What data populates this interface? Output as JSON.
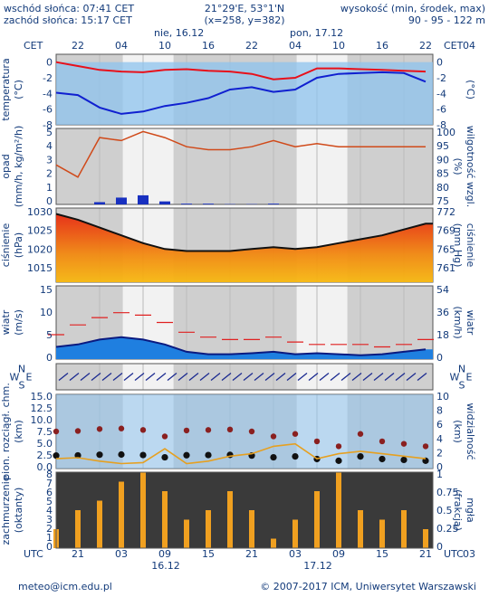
{
  "header": {
    "sunrise": "wschód słońca: 07:41 CET",
    "sunset": "zachód słońca: 15:17 CET",
    "coords": "21°29'E, 53°1'N",
    "grid": "(x=258, y=382)",
    "alt_label": "wysokość (min, środek, max)",
    "alt_values": "90 - 95 - 122 m"
  },
  "timeline": {
    "tz": "CET",
    "top_hours": [
      "22",
      "04",
      "10",
      "16",
      "22",
      "04",
      "10",
      "16",
      "22",
      "04"
    ],
    "dates_top": [
      "nie, 16.12",
      "pon, 17.12"
    ],
    "bottom_tz": "UTC",
    "bottom_hours": [
      "21",
      "03",
      "09",
      "15",
      "21",
      "03",
      "09",
      "15",
      "21",
      "03"
    ],
    "dates_bottom": [
      "16.12",
      "17.12"
    ]
  },
  "panels": {
    "temperature": {
      "left_label": "temperatura",
      "left_unit": "(°C)",
      "right_unit": "(°C)",
      "ticks": [
        "0",
        "-2",
        "-4",
        "-6",
        "-8"
      ]
    },
    "precip": {
      "left_label": "opad",
      "left_unit": "(mm/h, kg/m²/h)",
      "right_label": "wilgotność wzgl.",
      "right_unit": "(%)",
      "left_ticks": [
        "5",
        "4",
        "3",
        "2",
        "1",
        "0"
      ],
      "right_ticks": [
        "100",
        "95",
        "90",
        "85",
        "80",
        "75"
      ]
    },
    "pressure": {
      "left_label": "ciśnienie",
      "left_unit": "(hPa)",
      "right_label": "ciśnienie",
      "right_unit": "(mm Hg)",
      "left_ticks": [
        "1030",
        "1025",
        "1020",
        "1015"
      ],
      "right_ticks": [
        "772",
        "769",
        "765",
        "761"
      ]
    },
    "wind": {
      "left_label": "wiatr",
      "left_unit": "(m/s)",
      "right_label": "wiatr",
      "right_unit": "(km/h)",
      "left_ticks": [
        "15",
        "10",
        "5",
        "0"
      ],
      "right_ticks": [
        "54",
        "36",
        "18",
        "0"
      ]
    },
    "direction": {
      "n": "N",
      "s": "S",
      "w": "W",
      "e": "E"
    },
    "visibility": {
      "left_label": "pion. rozciągł. chm.",
      "left_unit": "(km)",
      "right_label": "widzialność",
      "right_unit": "(km)",
      "left_ticks": [
        "15.0",
        "12.5",
        "10.0",
        "7.5",
        "5.0",
        "2.5",
        "0.0"
      ],
      "right_ticks": [
        "10",
        "8",
        "6",
        "4",
        "2",
        "0"
      ]
    },
    "clouds": {
      "left_label": "zachmurzenie",
      "left_unit": "(oktanty)",
      "right_label": "mgła",
      "right_unit": "(frakcja)",
      "left_ticks": [
        "8",
        "7",
        "6",
        "5",
        "4",
        "3",
        "2",
        "1",
        "0"
      ],
      "right_ticks": [
        "1",
        "0.75",
        "0.5",
        "0.25",
        "0"
      ]
    }
  },
  "footer": {
    "email": "meteo@icm.edu.pl",
    "copyright": "© 2007-2017 ICM, Uniwersytet Warszawski"
  },
  "colors": {
    "temp_red": "#e8101a",
    "dew_blue": "#1020d0",
    "sky": "#8ec3ee",
    "night": "#d0d0d0",
    "rain": "#1830c0",
    "rh": "#d04a1a",
    "wind": "#1f7fe0",
    "gust": "#e02020",
    "cloud_bar": "#f0a020"
  },
  "chart_data": [
    {
      "type": "line",
      "title": "temperatura",
      "ylabel": "(°C)",
      "ylim": [
        -8,
        1
      ],
      "x_hours": [
        0,
        3,
        6,
        9,
        12,
        15,
        18,
        21,
        24,
        27,
        30,
        33,
        36,
        39,
        42,
        45,
        48,
        51
      ],
      "series": [
        {
          "name": "temperature",
          "values": [
            0.0,
            -0.5,
            -1.0,
            -1.2,
            -1.3,
            -1.0,
            -0.9,
            -1.1,
            -1.2,
            -1.5,
            -2.2,
            -2.0,
            -0.8,
            -0.8,
            -0.9,
            -1.0,
            -1.1,
            -1.2
          ]
        },
        {
          "name": "dew point",
          "values": [
            -3.9,
            -4.2,
            -5.8,
            -6.6,
            -6.3,
            -5.6,
            -5.2,
            -4.6,
            -3.5,
            -3.2,
            -3.8,
            -3.5,
            -2.0,
            -1.5,
            -1.4,
            -1.3,
            -1.4,
            -2.5
          ]
        }
      ]
    },
    {
      "type": "line",
      "title": "opad / wilgotność wzgl.",
      "x_hours": [
        0,
        3,
        6,
        9,
        12,
        15,
        18,
        21,
        24,
        27,
        30,
        33,
        36,
        39,
        42,
        45,
        48,
        51
      ],
      "series": [
        {
          "name": "precip",
          "values": [
            0.0,
            0.0,
            0.15,
            0.45,
            0.6,
            0.2,
            0.05,
            0.05,
            0.02,
            0.02,
            0.05,
            0.0,
            0.0,
            0.0,
            0.0,
            0.0,
            0.0,
            0.0
          ]
        },
        {
          "name": "rh",
          "values": [
            88,
            84,
            97,
            96,
            99,
            97,
            94,
            93,
            93,
            94,
            96,
            94,
            95,
            94,
            94,
            94,
            94,
            94
          ]
        }
      ],
      "ylim": [
        0,
        5
      ],
      "y2lim": [
        75,
        100
      ]
    },
    {
      "type": "area",
      "title": "ciśnienie",
      "ylabel": "(hPa)",
      "ylim": [
        1012,
        1031
      ],
      "x_hours": [
        0,
        3,
        6,
        9,
        12,
        15,
        18,
        21,
        24,
        27,
        30,
        33,
        36,
        39,
        42,
        45,
        48,
        51
      ],
      "values": [
        1029.5,
        1028.0,
        1026.0,
        1024.0,
        1022.0,
        1020.5,
        1020.0,
        1020.0,
        1020.0,
        1020.5,
        1021.0,
        1020.5,
        1021.0,
        1022.0,
        1023.0,
        1024.0,
        1025.5,
        1027.0
      ]
    },
    {
      "type": "line",
      "title": "wiatr",
      "ylabel": "(m/s)",
      "ylim": [
        0,
        15
      ],
      "x_hours": [
        0,
        3,
        6,
        9,
        12,
        15,
        18,
        21,
        24,
        27,
        30,
        33,
        36,
        39,
        42,
        45,
        48,
        51
      ],
      "series": [
        {
          "name": "wind",
          "values": [
            2.5,
            3.0,
            4.0,
            4.5,
            4.0,
            3.0,
            1.5,
            1.0,
            1.0,
            1.2,
            1.5,
            1.0,
            1.2,
            1.0,
            0.8,
            1.0,
            1.5,
            2.0
          ]
        },
        {
          "name": "gust",
          "values": [
            5.0,
            7.0,
            8.5,
            9.5,
            9.0,
            7.5,
            5.5,
            4.5,
            4.0,
            4.0,
            4.5,
            3.5,
            3.0,
            3.0,
            3.0,
            2.5,
            3.0,
            4.0
          ]
        }
      ]
    },
    {
      "type": "scatter",
      "title": "pion. rozciągł. chm. / widzialność",
      "ylabel": "(km)",
      "ylim": [
        0,
        15
      ],
      "x_hours": [
        0,
        3,
        6,
        9,
        12,
        15,
        18,
        21,
        24,
        27,
        30,
        33,
        36,
        39,
        42,
        45,
        48,
        51
      ],
      "series": [
        {
          "name": "cloud depth",
          "values": [
            7.5,
            7.6,
            8.0,
            8.1,
            7.8,
            6.5,
            7.7,
            7.8,
            7.9,
            7.5,
            6.5,
            7.0,
            5.5,
            4.5,
            7.0,
            5.5,
            5.0,
            4.5
          ]
        },
        {
          "name": "visibility",
          "values": [
            2.0,
            2.2,
            1.5,
            1.0,
            1.2,
            4.0,
            1.0,
            1.5,
            2.5,
            3.0,
            4.5,
            5.0,
            2.0,
            3.0,
            3.5,
            3.0,
            2.5,
            2.0
          ]
        }
      ]
    },
    {
      "type": "bar",
      "title": "zachmurzenie",
      "ylabel": "(oktanty)",
      "ylim": [
        0,
        8
      ],
      "x_hours": [
        0,
        3,
        6,
        9,
        12,
        15,
        18,
        21,
        24,
        27,
        30,
        33,
        36,
        39,
        42,
        45,
        48,
        51
      ],
      "values": [
        2,
        4,
        5,
        7,
        8,
        6,
        3,
        4,
        6,
        4,
        1,
        3,
        6,
        8,
        4,
        3,
        4,
        2
      ]
    }
  ]
}
